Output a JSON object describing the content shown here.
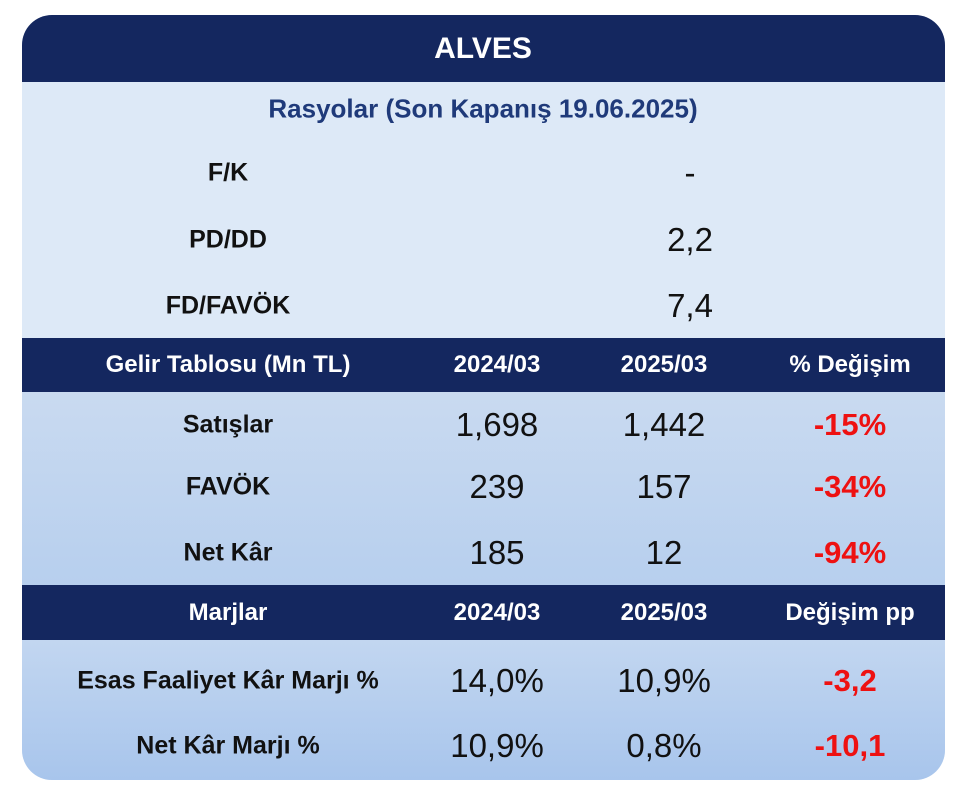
{
  "header": {
    "title": "ALVES",
    "subtitle": "Rasyolar (Son Kapanış 19.06.2025)"
  },
  "ratios": {
    "rows": [
      [
        "F/K",
        "-"
      ],
      [
        "PD/DD",
        "2,2"
      ],
      [
        "FD/FAVÖK",
        "7,4"
      ]
    ]
  },
  "income": {
    "header": [
      "Gelir Tablosu (Mn TL)",
      "2024/03",
      "2025/03",
      "% Değişim"
    ],
    "rows": [
      [
        "Satışlar",
        "1,698",
        "1,442",
        "-15%"
      ],
      [
        "FAVÖK",
        "239",
        "157",
        "-34%"
      ],
      [
        "Net Kâr",
        "185",
        "12",
        "-94%"
      ]
    ]
  },
  "margins": {
    "header": [
      "Marjlar",
      "2024/03",
      "2025/03",
      "Değişim pp"
    ],
    "rows": [
      [
        "Esas Faaliyet Kâr Marjı %",
        "14,0%",
        "10,9%",
        "-3,2"
      ],
      [
        "Net Kâr Marjı %",
        "10,9%",
        "0,8%",
        "-10,1"
      ]
    ]
  }
}
